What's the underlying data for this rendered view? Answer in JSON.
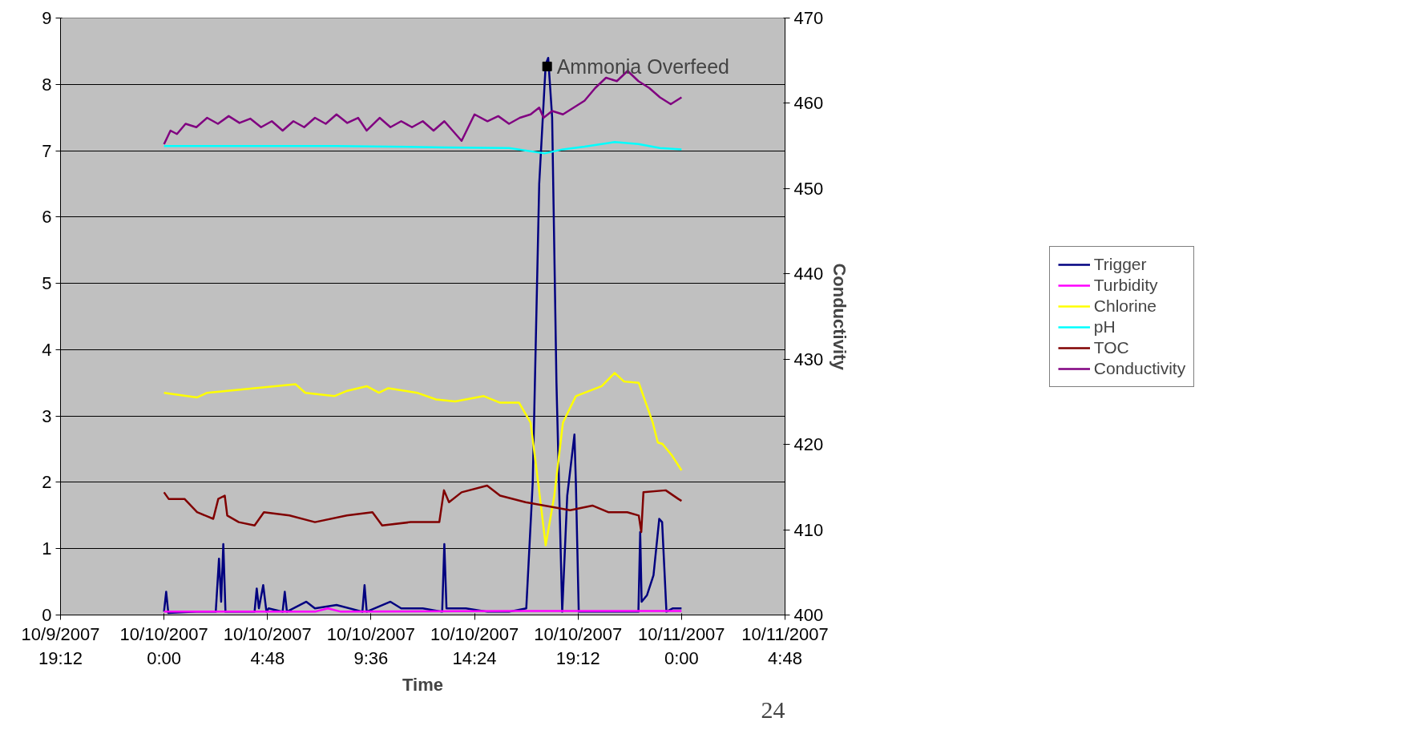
{
  "chart_data": {
    "type": "line",
    "xlabel": "Time",
    "y2label": "Conductivity",
    "xlim": [
      "2007-10-09T19:12",
      "2007-10-11T04:48"
    ],
    "xticks": [
      {
        "value": "2007-10-09T19:12",
        "label": "10/9/2007\n19:12"
      },
      {
        "value": "2007-10-10T00:00",
        "label": "10/10/2007\n0:00"
      },
      {
        "value": "2007-10-10T04:48",
        "label": "10/10/2007\n4:48"
      },
      {
        "value": "2007-10-10T09:36",
        "label": "10/10/2007\n9:36"
      },
      {
        "value": "2007-10-10T14:24",
        "label": "10/10/2007\n14:24"
      },
      {
        "value": "2007-10-10T19:12",
        "label": "10/10/2007\n19:12"
      },
      {
        "value": "2007-10-11T00:00",
        "label": "10/11/2007\n0:00"
      },
      {
        "value": "2007-10-11T04:48",
        "label": "10/11/2007\n4:48"
      }
    ],
    "ylim": [
      0,
      9
    ],
    "yticks": [
      0,
      1,
      2,
      3,
      4,
      5,
      6,
      7,
      8,
      9
    ],
    "y2lim": [
      400,
      470
    ],
    "y2ticks": [
      400,
      410,
      420,
      430,
      440,
      450,
      460,
      470
    ],
    "grid": "y",
    "legend": "right",
    "annotations": [
      {
        "text": "Ammonia Overfeed",
        "x": "2007-10-10T17:46",
        "y": 8.27
      },
      "24"
    ],
    "series": [
      {
        "name": "Trigger",
        "color": "#000080",
        "x": [
          "2007-10-10T00:00",
          "2007-10-10T00:06",
          "2007-10-10T00:12",
          "2007-10-10T01:30",
          "2007-10-10T02:24",
          "2007-10-10T02:33",
          "2007-10-10T02:39",
          "2007-10-10T02:45",
          "2007-10-10T02:51",
          "2007-10-10T03:00",
          "2007-10-10T04:12",
          "2007-10-10T04:18",
          "2007-10-10T04:24",
          "2007-10-10T04:36",
          "2007-10-10T04:45",
          "2007-10-10T04:51",
          "2007-10-10T05:30",
          "2007-10-10T05:36",
          "2007-10-10T05:42",
          "2007-10-10T06:36",
          "2007-10-10T07:00",
          "2007-10-10T08:00",
          "2007-10-10T09:12",
          "2007-10-10T09:18",
          "2007-10-10T09:24",
          "2007-10-10T10:30",
          "2007-10-10T11:00",
          "2007-10-10T12:00",
          "2007-10-10T12:54",
          "2007-10-10T13:00",
          "2007-10-10T13:06",
          "2007-10-10T14:00",
          "2007-10-10T15:00",
          "2007-10-10T16:00",
          "2007-10-10T16:48",
          "2007-10-10T17:06",
          "2007-10-10T17:24",
          "2007-10-10T17:42",
          "2007-10-10T17:49",
          "2007-10-10T18:00",
          "2007-10-10T18:12",
          "2007-10-10T18:28",
          "2007-10-10T18:42",
          "2007-10-10T19:02",
          "2007-10-10T19:06",
          "2007-10-10T19:14",
          "2007-10-10T20:00",
          "2007-10-10T21:00",
          "2007-10-10T22:00",
          "2007-10-10T22:05",
          "2007-10-10T22:09",
          "2007-10-10T22:24",
          "2007-10-10T22:42",
          "2007-10-10T22:58",
          "2007-10-10T23:06",
          "2007-10-10T23:18",
          "2007-10-10T23:36",
          "2007-10-11T00:00"
        ],
        "values": [
          0.05,
          0.35,
          0.03,
          0.05,
          0.05,
          0.85,
          0.2,
          1.07,
          0.05,
          0.05,
          0.05,
          0.4,
          0.1,
          0.45,
          0.05,
          0.1,
          0.05,
          0.35,
          0.05,
          0.2,
          0.1,
          0.15,
          0.05,
          0.45,
          0.05,
          0.2,
          0.1,
          0.1,
          0.05,
          1.07,
          0.1,
          0.1,
          0.05,
          0.05,
          0.1,
          2.0,
          6.5,
          8.3,
          8.4,
          7.5,
          3.5,
          0.05,
          1.8,
          2.72,
          2.0,
          0.05,
          0.05,
          0.05,
          0.05,
          1.25,
          0.2,
          0.3,
          0.6,
          1.45,
          1.4,
          0.05,
          0.1,
          0.1
        ]
      },
      {
        "name": "Turbidity",
        "color": "#ff00ff",
        "x": [
          "2007-10-10T00:00",
          "2007-10-10T07:00",
          "2007-10-10T07:36",
          "2007-10-10T08:12",
          "2007-10-10T16:00",
          "2007-10-11T00:00"
        ],
        "values": [
          0.05,
          0.05,
          0.1,
          0.05,
          0.06,
          0.06
        ]
      },
      {
        "name": "Chlorine",
        "color": "#ffff00",
        "x": [
          "2007-10-10T00:00",
          "2007-10-10T01:32",
          "2007-10-10T02:00",
          "2007-10-10T06:06",
          "2007-10-10T06:33",
          "2007-10-10T07:54",
          "2007-10-10T08:30",
          "2007-10-10T09:24",
          "2007-10-10T09:58",
          "2007-10-10T10:24",
          "2007-10-10T11:44",
          "2007-10-10T12:37",
          "2007-10-10T13:30",
          "2007-10-10T14:50",
          "2007-10-10T15:35",
          "2007-10-10T16:28",
          "2007-10-10T17:00",
          "2007-10-10T17:21",
          "2007-10-10T17:42",
          "2007-10-10T18:06",
          "2007-10-10T18:30",
          "2007-10-10T19:06",
          "2007-10-10T20:18",
          "2007-10-10T20:54",
          "2007-10-10T21:20",
          "2007-10-10T22:01",
          "2007-10-10T22:40",
          "2007-10-10T22:54",
          "2007-10-10T23:07",
          "2007-10-10T23:34",
          "2007-10-11T00:00"
        ],
        "values": [
          3.35,
          3.28,
          3.35,
          3.48,
          3.35,
          3.3,
          3.38,
          3.45,
          3.35,
          3.42,
          3.35,
          3.25,
          3.22,
          3.3,
          3.2,
          3.2,
          2.9,
          2.0,
          1.05,
          1.8,
          2.9,
          3.3,
          3.45,
          3.65,
          3.52,
          3.5,
          2.9,
          2.6,
          2.58,
          2.4,
          2.18
        ]
      },
      {
        "name": "pH",
        "color": "#00ffff",
        "x": [
          "2007-10-10T00:00",
          "2007-10-10T03:00",
          "2007-10-10T08:00",
          "2007-10-10T13:00",
          "2007-10-10T16:00",
          "2007-10-10T17:39",
          "2007-10-10T18:30",
          "2007-10-10T19:30",
          "2007-10-10T20:54",
          "2007-10-10T22:00",
          "2007-10-10T23:00",
          "2007-10-11T00:00"
        ],
        "values": [
          7.07,
          7.07,
          7.07,
          7.05,
          7.04,
          6.96,
          7.02,
          7.06,
          7.13,
          7.1,
          7.04,
          7.02
        ]
      },
      {
        "name": "TOC",
        "color": "#800000",
        "x": [
          "2007-10-10T00:00",
          "2007-10-10T00:13",
          "2007-10-10T00:57",
          "2007-10-10T01:32",
          "2007-10-10T02:17",
          "2007-10-10T02:31",
          "2007-10-10T02:49",
          "2007-10-10T02:56",
          "2007-10-10T03:28",
          "2007-10-10T04:12",
          "2007-10-10T04:38",
          "2007-10-10T05:49",
          "2007-10-10T07:00",
          "2007-10-10T08:29",
          "2007-10-10T09:40",
          "2007-10-10T10:07",
          "2007-10-10T11:26",
          "2007-10-10T12:46",
          "2007-10-10T12:59",
          "2007-10-10T13:13",
          "2007-10-10T13:48",
          "2007-10-10T14:59",
          "2007-10-10T15:35",
          "2007-10-10T16:46",
          "2007-10-10T17:39",
          "2007-10-10T18:50",
          "2007-10-10T19:52",
          "2007-10-10T20:36",
          "2007-10-10T21:29",
          "2007-10-10T22:01",
          "2007-10-10T22:08",
          "2007-10-10T22:14",
          "2007-10-10T23:16",
          "2007-10-10T23:51",
          "2007-10-11T00:00"
        ],
        "values": [
          1.85,
          1.75,
          1.75,
          1.55,
          1.45,
          1.75,
          1.8,
          1.5,
          1.4,
          1.35,
          1.55,
          1.5,
          1.4,
          1.5,
          1.55,
          1.35,
          1.4,
          1.4,
          1.88,
          1.7,
          1.85,
          1.95,
          1.8,
          1.7,
          1.65,
          1.58,
          1.65,
          1.55,
          1.55,
          1.5,
          1.25,
          1.85,
          1.88,
          1.75,
          1.72
        ]
      },
      {
        "name": "Conductivity",
        "color": "#800080",
        "axis": "y2",
        "x": [
          "2007-10-10T00:00",
          "2007-10-10T00:18",
          "2007-10-10T00:36",
          "2007-10-10T01:00",
          "2007-10-10T01:30",
          "2007-10-10T02:00",
          "2007-10-10T02:30",
          "2007-10-10T03:00",
          "2007-10-10T03:30",
          "2007-10-10T04:00",
          "2007-10-10T04:30",
          "2007-10-10T05:00",
          "2007-10-10T05:30",
          "2007-10-10T06:00",
          "2007-10-10T06:30",
          "2007-10-10T07:00",
          "2007-10-10T07:30",
          "2007-10-10T08:00",
          "2007-10-10T08:30",
          "2007-10-10T09:00",
          "2007-10-10T09:24",
          "2007-10-10T10:00",
          "2007-10-10T10:30",
          "2007-10-10T11:00",
          "2007-10-10T11:30",
          "2007-10-10T12:00",
          "2007-10-10T12:30",
          "2007-10-10T13:00",
          "2007-10-10T13:48",
          "2007-10-10T14:24",
          "2007-10-10T15:00",
          "2007-10-10T15:30",
          "2007-10-10T16:00",
          "2007-10-10T16:30",
          "2007-10-10T17:00",
          "2007-10-10T17:24",
          "2007-10-10T17:36",
          "2007-10-10T18:00",
          "2007-10-10T18:30",
          "2007-10-10T19:00",
          "2007-10-10T19:30",
          "2007-10-10T20:00",
          "2007-10-10T20:30",
          "2007-10-10T21:00",
          "2007-10-10T21:30",
          "2007-10-10T22:00",
          "2007-10-10T22:30",
          "2007-10-10T23:00",
          "2007-10-10T23:30",
          "2007-10-11T00:00"
        ],
        "values": [
          455.2,
          456.8,
          456.4,
          457.6,
          457.2,
          458.3,
          457.6,
          458.5,
          457.7,
          458.2,
          457.2,
          457.9,
          456.8,
          457.9,
          457.2,
          458.3,
          457.6,
          458.7,
          457.7,
          458.3,
          456.8,
          458.3,
          457.2,
          457.9,
          457.2,
          457.9,
          456.8,
          457.9,
          455.6,
          458.7,
          457.9,
          458.5,
          457.6,
          458.3,
          458.7,
          459.5,
          458.3,
          459.1,
          458.7,
          459.5,
          460.3,
          461.8,
          463.0,
          462.6,
          463.8,
          462.6,
          461.8,
          460.7,
          459.9,
          460.7
        ]
      }
    ]
  }
}
